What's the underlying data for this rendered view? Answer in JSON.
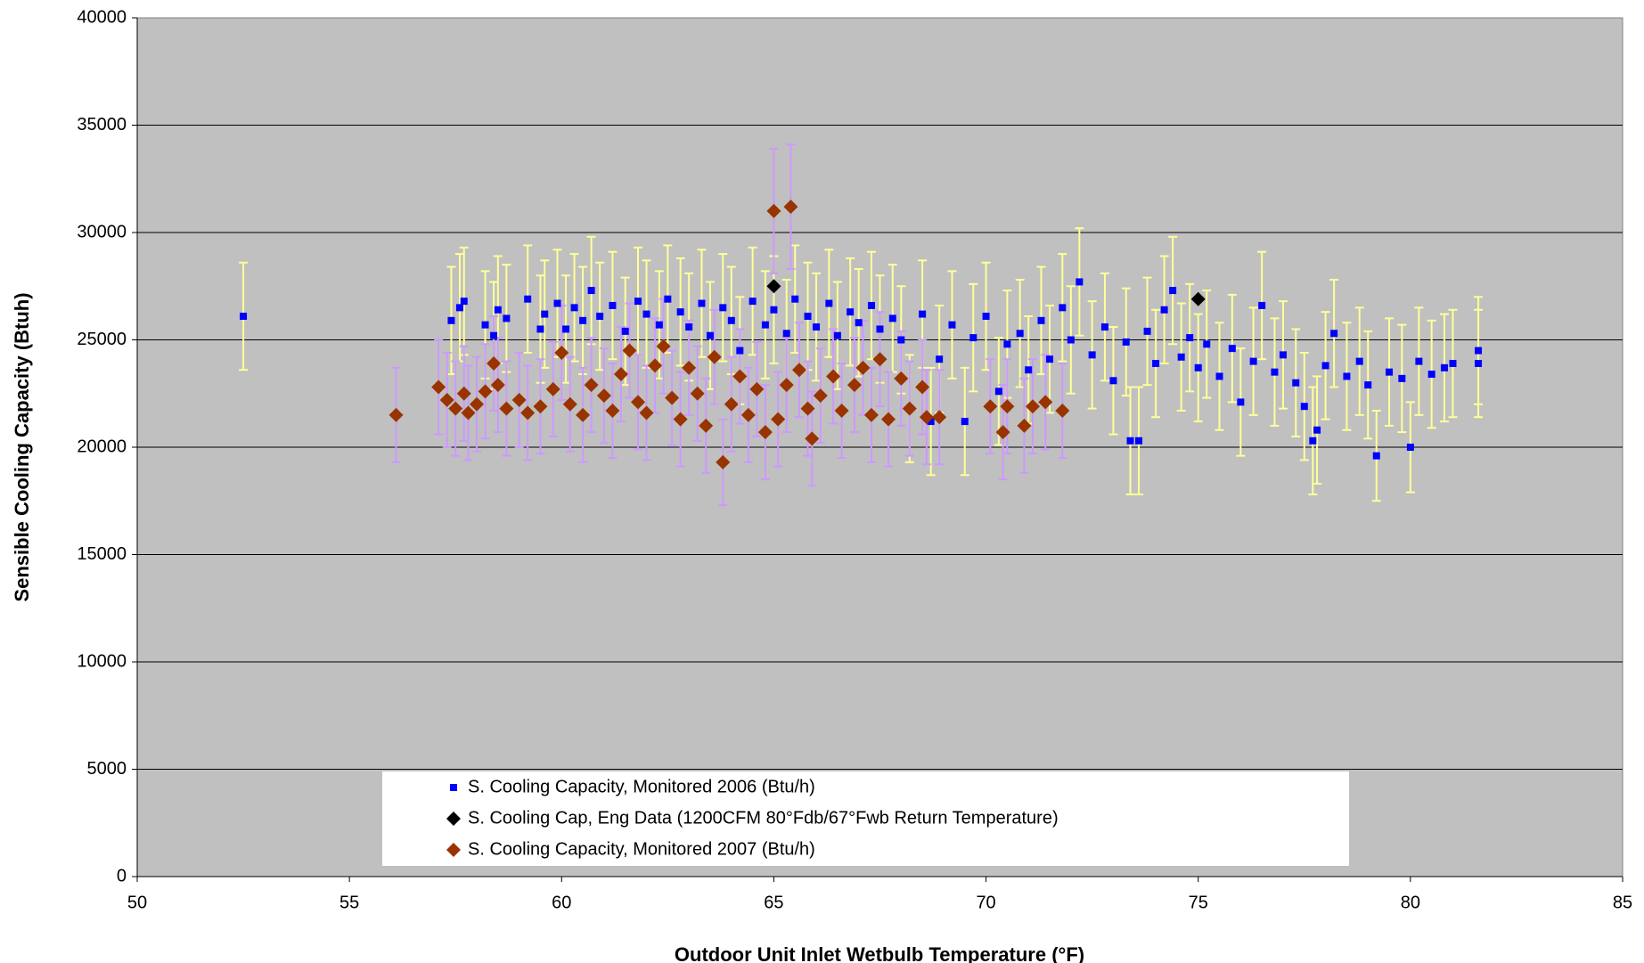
{
  "chart_data": {
    "type": "scatter",
    "xlabel": "Outdoor Unit Inlet Wetbulb Temperature (°F)",
    "ylabel": "Sensible Cooling Capacity (Btuh)",
    "xlim": [
      50,
      85
    ],
    "xticks": [
      50,
      55,
      60,
      65,
      70,
      75,
      80,
      85
    ],
    "ylim": [
      0,
      40000
    ],
    "yticks": [
      0,
      5000,
      10000,
      15000,
      20000,
      25000,
      30000,
      35000,
      40000
    ],
    "grid": true,
    "legend": "bottom-center",
    "series": [
      {
        "name": "S. Cooling Capacity, Monitored 2006 (Btu/h)",
        "color": "#0000ff",
        "marker": "square",
        "error_color": "#ffff99",
        "x": [
          52.5,
          57.4,
          57.6,
          57.7,
          58.2,
          58.4,
          58.5,
          58.7,
          59.2,
          59.5,
          59.6,
          59.9,
          60.1,
          60.3,
          60.5,
          60.7,
          60.9,
          61.2,
          61.5,
          61.8,
          62.0,
          62.3,
          62.5,
          62.8,
          63.0,
          63.3,
          63.5,
          63.8,
          64.0,
          64.2,
          64.5,
          64.8,
          65.0,
          65.3,
          65.5,
          65.8,
          66.0,
          66.3,
          66.5,
          66.8,
          67.0,
          67.3,
          67.5,
          67.8,
          68.0,
          68.2,
          68.5,
          68.7,
          68.9,
          69.2,
          69.5,
          69.7,
          70.0,
          70.3,
          70.5,
          70.8,
          71.0,
          71.3,
          71.5,
          71.8,
          72.0,
          72.2,
          72.5,
          72.8,
          73.0,
          73.3,
          73.4,
          73.6,
          73.8,
          74.0,
          74.2,
          74.4,
          74.6,
          74.8,
          75.0,
          75.2,
          75.5,
          75.8,
          76.0,
          76.3,
          76.5,
          76.8,
          77.0,
          77.3,
          77.5,
          77.7,
          77.8,
          78.0,
          78.2,
          78.5,
          78.8,
          79.0,
          79.2,
          79.5,
          79.8,
          80.0,
          80.2,
          80.5,
          80.8,
          81.0,
          81.6,
          81.6
        ],
        "values": [
          26100,
          25900,
          26500,
          26800,
          25700,
          25200,
          26400,
          26000,
          26900,
          25500,
          26200,
          26700,
          25500,
          26500,
          25900,
          27300,
          26100,
          26600,
          25400,
          26800,
          26200,
          25700,
          26900,
          26300,
          25600,
          26700,
          25200,
          26500,
          25900,
          24500,
          26800,
          25700,
          26400,
          25300,
          26900,
          26100,
          25600,
          26700,
          25200,
          26300,
          25800,
          26600,
          25500,
          26000,
          25000,
          21800,
          26200,
          21200,
          24100,
          25700,
          21200,
          25100,
          26100,
          22600,
          24800,
          25300,
          23600,
          25900,
          24100,
          26500,
          25000,
          27700,
          24300,
          25600,
          23100,
          24900,
          20300,
          20300,
          25400,
          23900,
          26400,
          27300,
          24200,
          25100,
          23700,
          24800,
          23300,
          24600,
          22100,
          24000,
          26600,
          23500,
          24300,
          23000,
          21900,
          20300,
          20800,
          23800,
          25300,
          23300,
          24000,
          22900,
          19600,
          23500,
          23200,
          20000,
          24000,
          23400,
          23700,
          23900,
          24500,
          23900
        ],
        "error": [
          2500,
          2500,
          2500,
          2500,
          2500,
          2500,
          2500,
          2500,
          2500,
          2500,
          2500,
          2500,
          2500,
          2500,
          2500,
          2500,
          2500,
          2500,
          2500,
          2500,
          2500,
          2500,
          2500,
          2500,
          2500,
          2500,
          2500,
          2500,
          2500,
          2500,
          2500,
          2500,
          2500,
          2500,
          2500,
          2500,
          2500,
          2500,
          2500,
          2500,
          2500,
          2500,
          2500,
          2500,
          2500,
          2500,
          2500,
          2500,
          2500,
          2500,
          2500,
          2500,
          2500,
          2500,
          2500,
          2500,
          2500,
          2500,
          2500,
          2500,
          2500,
          2500,
          2500,
          2500,
          2500,
          2500,
          2500,
          2500,
          2500,
          2500,
          2500,
          2500,
          2500,
          2500,
          2500,
          2500,
          2500,
          2500,
          2500,
          2500,
          2500,
          2500,
          2500,
          2500,
          2500,
          2500,
          2500,
          2500,
          2500,
          2500,
          2500,
          2500,
          2100,
          2500,
          2500,
          2100,
          2500,
          2500,
          2500,
          2500,
          2500,
          2500
        ]
      },
      {
        "name": "S. Cooling Cap, Eng Data (1200CFM 80°Fdb/67°Fwb Return Temperature)",
        "color": "#000000",
        "marker": "diamond",
        "x": [
          65.0,
          75.0
        ],
        "values": [
          27500,
          26900
        ]
      },
      {
        "name": "S. Cooling Capacity, Monitored 2007 (Btu/h)",
        "color": "#993300",
        "marker": "diamond",
        "error_color": "#cc99ff",
        "x": [
          56.1,
          57.1,
          57.3,
          57.5,
          57.7,
          57.8,
          58.0,
          58.2,
          58.4,
          58.5,
          58.7,
          59.0,
          59.2,
          59.5,
          59.8,
          60.0,
          60.2,
          60.5,
          60.7,
          61.0,
          61.2,
          61.4,
          61.6,
          61.8,
          62.0,
          62.2,
          62.4,
          62.6,
          62.8,
          63.0,
          63.2,
          63.4,
          63.6,
          63.8,
          64.0,
          64.2,
          64.4,
          64.6,
          64.8,
          65.0,
          65.1,
          65.3,
          65.4,
          65.6,
          65.8,
          65.9,
          66.1,
          66.4,
          66.6,
          66.9,
          67.1,
          67.3,
          67.5,
          67.7,
          68.0,
          68.2,
          68.5,
          68.6,
          68.9,
          70.1,
          70.4,
          70.5,
          70.9,
          71.1,
          71.4,
          71.8
        ],
        "values": [
          21500,
          22800,
          22200,
          21800,
          22500,
          21600,
          22000,
          22600,
          23900,
          22900,
          21800,
          22200,
          21600,
          21900,
          22700,
          24400,
          22000,
          21500,
          22900,
          22400,
          21700,
          23400,
          24500,
          22100,
          21600,
          23800,
          24700,
          22300,
          21300,
          23700,
          22500,
          21000,
          24200,
          19300,
          22000,
          23300,
          21500,
          22700,
          20700,
          31000,
          21300,
          22900,
          31200,
          23600,
          21800,
          20400,
          22400,
          23300,
          21700,
          22900,
          23700,
          21500,
          24100,
          21300,
          23200,
          21800,
          22800,
          21400,
          21400,
          21900,
          20700,
          21900,
          21000,
          21900,
          22100,
          21700
        ],
        "error": [
          2200,
          2200,
          2200,
          2200,
          2200,
          2200,
          2200,
          2200,
          2200,
          2200,
          2200,
          2200,
          2200,
          2200,
          2200,
          2200,
          2200,
          2200,
          2200,
          2200,
          2200,
          2200,
          2200,
          2200,
          2200,
          2200,
          2200,
          2200,
          2200,
          2200,
          2200,
          2200,
          2200,
          2000,
          2200,
          2200,
          2200,
          2200,
          2200,
          2900,
          2200,
          2200,
          2900,
          2200,
          2200,
          2200,
          2200,
          2200,
          2200,
          2200,
          2200,
          2200,
          2200,
          2200,
          2200,
          2200,
          2200,
          2200,
          2200,
          2200,
          2200,
          2200,
          2200,
          2200,
          2200,
          2200
        ]
      }
    ]
  }
}
